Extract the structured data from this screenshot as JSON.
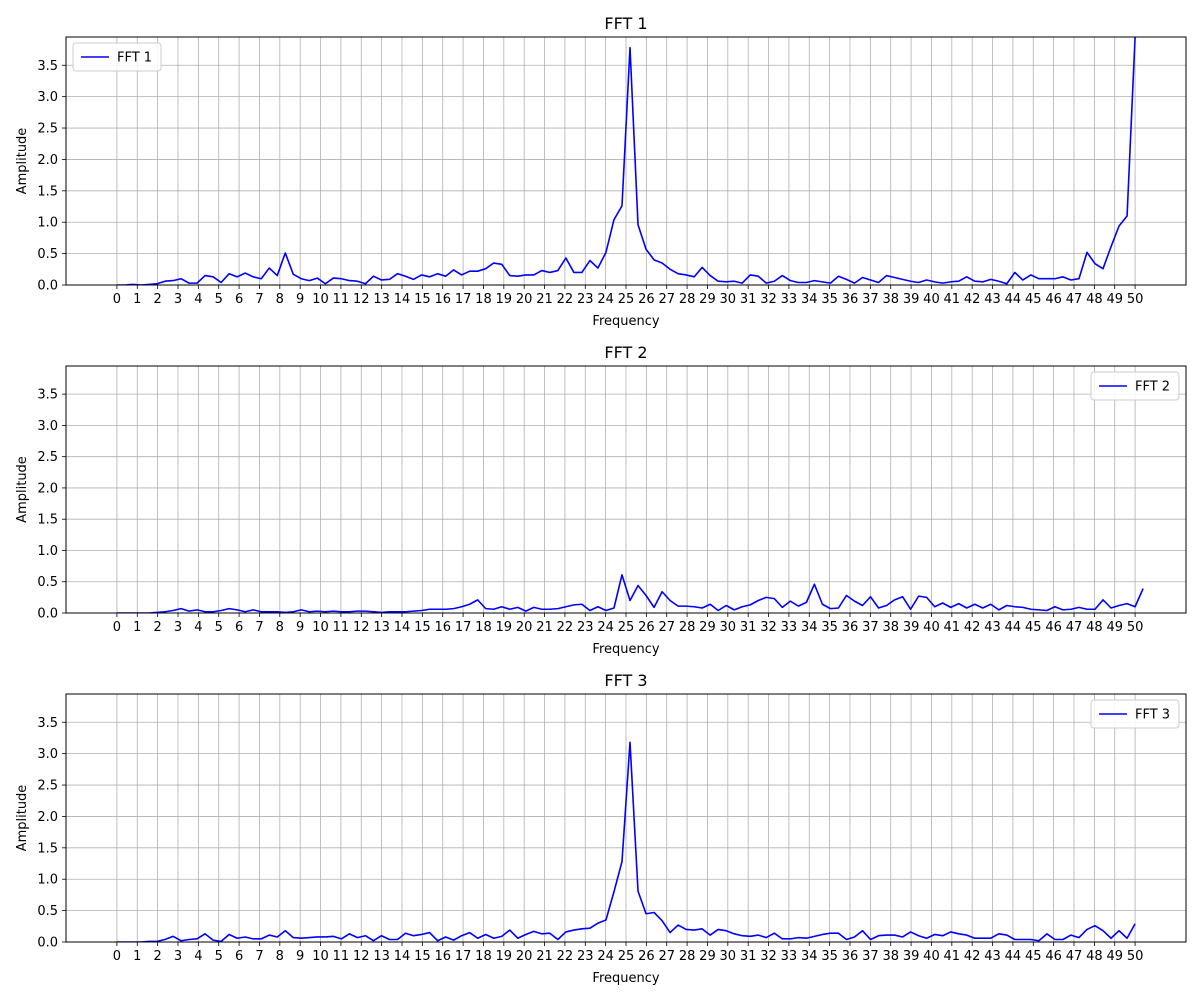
{
  "chart_data": [
    {
      "type": "line",
      "title": "FFT 1",
      "xlabel": "Frequency",
      "ylabel": "Amplitude",
      "xlim": [
        -2.5,
        52.5
      ],
      "ylim": [
        0,
        3.95
      ],
      "xticks": [
        0,
        1,
        2,
        3,
        4,
        5,
        6,
        7,
        8,
        9,
        10,
        11,
        12,
        13,
        14,
        15,
        16,
        17,
        18,
        19,
        20,
        21,
        22,
        23,
        24,
        25,
        26,
        27,
        28,
        29,
        30,
        31,
        32,
        33,
        34,
        35,
        36,
        37,
        38,
        39,
        40,
        41,
        42,
        43,
        44,
        45,
        46,
        47,
        48,
        49,
        50
      ],
      "yticks": [
        "0.0",
        "0.5",
        "1.0",
        "1.5",
        "2.0",
        "2.5",
        "3.0",
        "3.5"
      ],
      "grid": true,
      "legend_position": "upper-left",
      "color": "#0000ff",
      "series": [
        {
          "name": "FFT 1",
          "x_step": 0.3937,
          "values": [
            0.0,
            0.0,
            0.01,
            0.0,
            0.01,
            0.02,
            0.06,
            0.07,
            0.1,
            0.03,
            0.03,
            0.15,
            0.13,
            0.04,
            0.18,
            0.13,
            0.19,
            0.13,
            0.1,
            0.27,
            0.15,
            0.51,
            0.17,
            0.1,
            0.07,
            0.11,
            0.02,
            0.11,
            0.1,
            0.07,
            0.06,
            0.02,
            0.14,
            0.08,
            0.09,
            0.18,
            0.14,
            0.09,
            0.16,
            0.13,
            0.18,
            0.14,
            0.24,
            0.16,
            0.22,
            0.22,
            0.26,
            0.35,
            0.33,
            0.15,
            0.14,
            0.16,
            0.16,
            0.23,
            0.2,
            0.23,
            0.43,
            0.2,
            0.2,
            0.39,
            0.27,
            0.52,
            1.04,
            1.26,
            3.78,
            0.96,
            0.57,
            0.4,
            0.35,
            0.25,
            0.18,
            0.16,
            0.13,
            0.28,
            0.15,
            0.06,
            0.05,
            0.06,
            0.03,
            0.16,
            0.14,
            0.03,
            0.06,
            0.15,
            0.07,
            0.04,
            0.04,
            0.07,
            0.05,
            0.03,
            0.14,
            0.09,
            0.03,
            0.12,
            0.08,
            0.04,
            0.15,
            0.12,
            0.09,
            0.06,
            0.04,
            0.08,
            0.05,
            0.03,
            0.05,
            0.06,
            0.13,
            0.06,
            0.05,
            0.09,
            0.06,
            0.02,
            0.2,
            0.08,
            0.16,
            0.1,
            0.1,
            0.1,
            0.13,
            0.08,
            0.1,
            0.52,
            0.34,
            0.26,
            0.61,
            0.94,
            1.1,
            3.95
          ]
        }
      ]
    },
    {
      "type": "line",
      "title": "FFT 2",
      "xlabel": "Frequency",
      "ylabel": "Amplitude",
      "xlim": [
        -2.5,
        52.5
      ],
      "ylim": [
        0,
        3.95
      ],
      "xticks": [
        0,
        1,
        2,
        3,
        4,
        5,
        6,
        7,
        8,
        9,
        10,
        11,
        12,
        13,
        14,
        15,
        16,
        17,
        18,
        19,
        20,
        21,
        22,
        23,
        24,
        25,
        26,
        27,
        28,
        29,
        30,
        31,
        32,
        33,
        34,
        35,
        36,
        37,
        38,
        39,
        40,
        41,
        42,
        43,
        44,
        45,
        46,
        47,
        48,
        49,
        50
      ],
      "yticks": [
        "0.0",
        "0.5",
        "1.0",
        "1.5",
        "2.0",
        "2.5",
        "3.0",
        "3.5"
      ],
      "grid": true,
      "legend_position": "upper-right",
      "color": "#0000ff",
      "series": [
        {
          "name": "FFT 2",
          "x_step": 0.3937,
          "values": [
            0.0,
            0.0,
            0.0,
            0.0,
            0.0,
            0.01,
            0.02,
            0.04,
            0.07,
            0.03,
            0.05,
            0.02,
            0.02,
            0.04,
            0.07,
            0.05,
            0.02,
            0.05,
            0.02,
            0.02,
            0.02,
            0.01,
            0.02,
            0.05,
            0.02,
            0.03,
            0.02,
            0.03,
            0.02,
            0.02,
            0.03,
            0.03,
            0.02,
            0.01,
            0.02,
            0.02,
            0.02,
            0.03,
            0.04,
            0.06,
            0.06,
            0.06,
            0.07,
            0.1,
            0.14,
            0.21,
            0.07,
            0.06,
            0.1,
            0.06,
            0.09,
            0.03,
            0.09,
            0.06,
            0.06,
            0.07,
            0.1,
            0.13,
            0.14,
            0.04,
            0.1,
            0.04,
            0.08,
            0.61,
            0.2,
            0.44,
            0.28,
            0.09,
            0.34,
            0.2,
            0.11,
            0.11,
            0.1,
            0.08,
            0.14,
            0.04,
            0.12,
            0.05,
            0.1,
            0.13,
            0.2,
            0.25,
            0.23,
            0.09,
            0.19,
            0.11,
            0.17,
            0.46,
            0.14,
            0.07,
            0.08,
            0.28,
            0.19,
            0.12,
            0.26,
            0.08,
            0.12,
            0.21,
            0.26,
            0.06,
            0.27,
            0.25,
            0.1,
            0.16,
            0.09,
            0.15,
            0.08,
            0.14,
            0.08,
            0.14,
            0.05,
            0.12,
            0.1,
            0.09,
            0.06,
            0.05,
            0.04,
            0.1,
            0.05,
            0.06,
            0.09,
            0.06,
            0.06,
            0.21,
            0.08,
            0.12,
            0.15,
            0.1,
            0.39
          ]
        }
      ]
    },
    {
      "type": "line",
      "title": "FFT 3",
      "xlabel": "Frequency",
      "ylabel": "Amplitude",
      "xlim": [
        -2.5,
        52.5
      ],
      "ylim": [
        0,
        3.95
      ],
      "xticks": [
        0,
        1,
        2,
        3,
        4,
        5,
        6,
        7,
        8,
        9,
        10,
        11,
        12,
        13,
        14,
        15,
        16,
        17,
        18,
        19,
        20,
        21,
        22,
        23,
        24,
        25,
        26,
        27,
        28,
        29,
        30,
        31,
        32,
        33,
        34,
        35,
        36,
        37,
        38,
        39,
        40,
        41,
        42,
        43,
        44,
        45,
        46,
        47,
        48,
        49,
        50
      ],
      "yticks": [
        "0.0",
        "0.5",
        "1.0",
        "1.5",
        "2.0",
        "2.5",
        "3.0",
        "3.5"
      ],
      "grid": true,
      "legend_position": "upper-right",
      "color": "#0000ff",
      "series": [
        {
          "name": "FFT 3",
          "x_step": 0.3937,
          "values": [
            0.0,
            0.0,
            0.0,
            0.0,
            0.01,
            0.01,
            0.04,
            0.09,
            0.02,
            0.04,
            0.05,
            0.13,
            0.03,
            0.01,
            0.12,
            0.06,
            0.08,
            0.05,
            0.05,
            0.11,
            0.08,
            0.18,
            0.07,
            0.06,
            0.07,
            0.08,
            0.08,
            0.09,
            0.05,
            0.13,
            0.07,
            0.1,
            0.02,
            0.1,
            0.04,
            0.04,
            0.14,
            0.1,
            0.12,
            0.15,
            0.02,
            0.08,
            0.03,
            0.1,
            0.15,
            0.06,
            0.12,
            0.06,
            0.09,
            0.19,
            0.06,
            0.12,
            0.17,
            0.13,
            0.14,
            0.04,
            0.16,
            0.19,
            0.21,
            0.22,
            0.3,
            0.35,
            0.8,
            1.28,
            3.18,
            0.81,
            0.45,
            0.47,
            0.34,
            0.15,
            0.27,
            0.2,
            0.19,
            0.21,
            0.11,
            0.2,
            0.18,
            0.13,
            0.1,
            0.09,
            0.11,
            0.07,
            0.14,
            0.05,
            0.05,
            0.07,
            0.06,
            0.09,
            0.12,
            0.14,
            0.14,
            0.04,
            0.08,
            0.18,
            0.04,
            0.1,
            0.11,
            0.11,
            0.08,
            0.16,
            0.1,
            0.06,
            0.12,
            0.1,
            0.16,
            0.13,
            0.11,
            0.06,
            0.06,
            0.06,
            0.13,
            0.11,
            0.04,
            0.04,
            0.04,
            0.02,
            0.13,
            0.04,
            0.04,
            0.11,
            0.07,
            0.2,
            0.26,
            0.18,
            0.06,
            0.18,
            0.06,
            0.29
          ]
        }
      ]
    }
  ]
}
